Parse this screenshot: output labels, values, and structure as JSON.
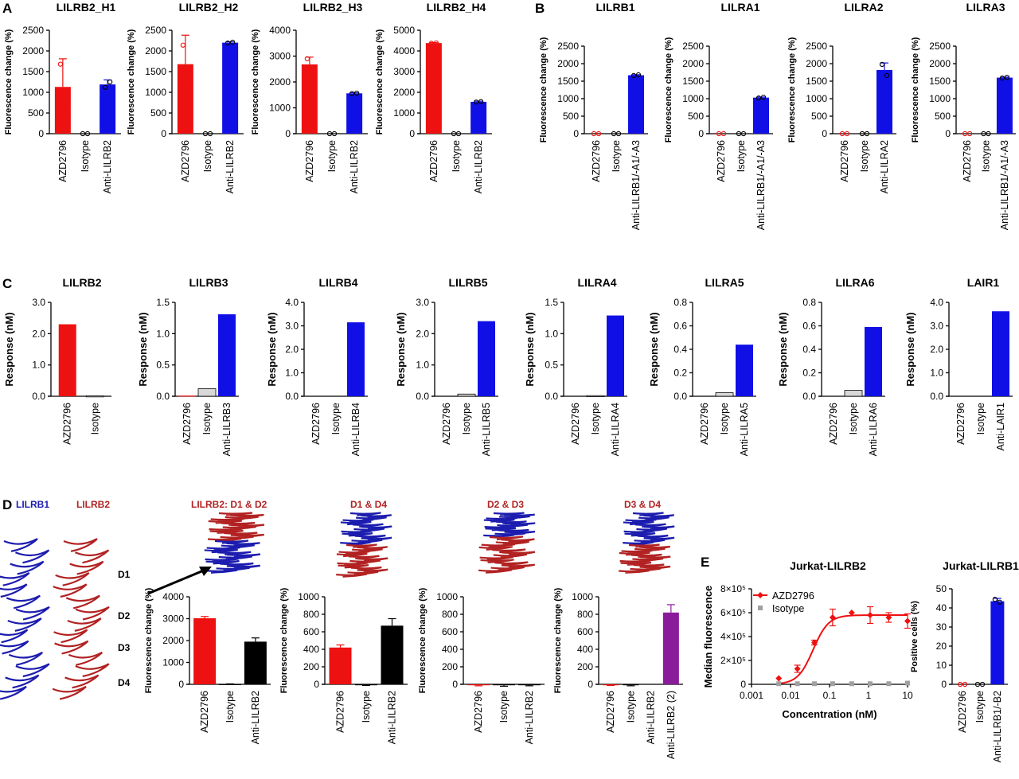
{
  "panel_labels": {
    "a": "A",
    "b": "B",
    "c": "C",
    "d": "D",
    "e": "E"
  },
  "structures": {
    "lilrb1": "LILRB1",
    "lilrb2": "LILRB2",
    "domains": [
      "D1",
      "D2",
      "D3",
      "D4"
    ],
    "chimeras": [
      "LILRB2: D1 & D2",
      "D1 & D4",
      "D2 & D3",
      "D3 & D4"
    ]
  },
  "colors": {
    "red": "#ee1111",
    "blue": "#1010e6",
    "black": "#000000",
    "purple": "#8a1c9b",
    "gray": "#a0a0a0",
    "dark_red": "#b22222",
    "dark_blue": "#1c1caf"
  },
  "chart_data": [
    {
      "type": "bar",
      "panel": "A",
      "title": "LILRB2_H1",
      "ylabel": "Fluorescence change (%)",
      "ylim": [
        0,
        2500
      ],
      "yticks": [
        0,
        500,
        1000,
        1500,
        2000,
        2500
      ],
      "categories": [
        "AZD2796",
        "Isotype",
        "Anti-LILRB2"
      ],
      "values": [
        1130,
        0,
        1190
      ],
      "errors": [
        680,
        0,
        110
      ],
      "colors": [
        "red",
        "blue",
        "blue"
      ],
      "points": [
        [
          1680,
          580
        ],
        [
          0,
          0
        ],
        [
          1120,
          1250
        ]
      ]
    },
    {
      "type": "bar",
      "panel": "A",
      "title": "LILRB2_H2",
      "ylabel": "Fluorescence change (%)",
      "ylim": [
        0,
        2500
      ],
      "yticks": [
        0,
        500,
        1000,
        1500,
        2000,
        2500
      ],
      "categories": [
        "AZD2796",
        "Isotype",
        "Anti-LILRB2"
      ],
      "values": [
        1680,
        0,
        2200
      ],
      "errors": [
        700,
        0,
        20
      ],
      "colors": [
        "red",
        "blue",
        "blue"
      ],
      "points": [
        [
          2140,
          1220
        ],
        [
          0,
          0
        ],
        [
          2190,
          2210
        ]
      ]
    },
    {
      "type": "bar",
      "panel": "A",
      "title": "LILRB2_H3",
      "ylabel": "Fluorescence change (%)",
      "ylim": [
        0,
        4000
      ],
      "yticks": [
        0,
        1000,
        2000,
        3000,
        4000
      ],
      "categories": [
        "AZD2796",
        "Isotype",
        "Anti-LILRB2"
      ],
      "values": [
        2680,
        0,
        1560
      ],
      "errors": [
        280,
        0,
        25
      ],
      "colors": [
        "red",
        "blue",
        "blue"
      ],
      "points": [
        [
          2900,
          2460
        ],
        [
          0,
          0
        ],
        [
          1550,
          1570
        ]
      ]
    },
    {
      "type": "bar",
      "panel": "A",
      "title": "LILRB2_H4",
      "ylabel": "Fluorescence change (%)",
      "ylim": [
        0,
        5000
      ],
      "yticks": [
        0,
        1000,
        2000,
        3000,
        4000,
        5000
      ],
      "categories": [
        "AZD2796",
        "Isotype",
        "Anti-LILRB2"
      ],
      "values": [
        4380,
        0,
        1540
      ],
      "errors": [
        25,
        0,
        30
      ],
      "colors": [
        "red",
        "blue",
        "blue"
      ],
      "points": [
        [
          4370,
          4390
        ],
        [
          0,
          0
        ],
        [
          1530,
          1550
        ]
      ]
    },
    {
      "type": "bar",
      "panel": "B",
      "title": "LILRB1",
      "ylabel": "Fluorescence change (%)",
      "ylim": [
        0,
        2500
      ],
      "yticks": [
        0,
        500,
        1000,
        1500,
        2000,
        2500
      ],
      "categories": [
        "AZD2796",
        "Isotype",
        "Anti-LILRB1/-A1/-A3"
      ],
      "values": [
        0,
        0,
        1670
      ],
      "errors": [
        0,
        0,
        15
      ],
      "colors": [
        "red",
        "black",
        "blue"
      ],
      "points": [
        [
          0,
          0
        ],
        [
          0,
          0
        ],
        [
          1660,
          1680
        ]
      ]
    },
    {
      "type": "bar",
      "panel": "B",
      "title": "LILRA1",
      "ylabel": "Fluorescence change (%)",
      "ylim": [
        0,
        2500
      ],
      "yticks": [
        0,
        500,
        1000,
        1500,
        2000,
        2500
      ],
      "categories": [
        "AZD2796",
        "Isotype",
        "Anti-LILRB1/-A1/-A3"
      ],
      "values": [
        0,
        0,
        1030
      ],
      "errors": [
        0,
        0,
        15
      ],
      "colors": [
        "red",
        "black",
        "blue"
      ],
      "points": [
        [
          0,
          0
        ],
        [
          0,
          0
        ],
        [
          1020,
          1040
        ]
      ]
    },
    {
      "type": "bar",
      "panel": "B",
      "title": "LILRA2",
      "ylabel": "Fluorescence change (%)",
      "ylim": [
        0,
        2500
      ],
      "yticks": [
        0,
        500,
        1000,
        1500,
        2000,
        2500
      ],
      "categories": [
        "AZD2796",
        "Isotype",
        "Anti-LILRA2"
      ],
      "values": [
        0,
        0,
        1820
      ],
      "errors": [
        0,
        0,
        200
      ],
      "colors": [
        "red",
        "black",
        "blue"
      ],
      "points": [
        [
          0,
          0
        ],
        [
          0,
          0
        ],
        [
          1980,
          1660
        ]
      ]
    },
    {
      "type": "bar",
      "panel": "B",
      "title": "LILRA3",
      "ylabel": "Fluorescence change (%)",
      "ylim": [
        0,
        2500
      ],
      "yticks": [
        0,
        500,
        1000,
        1500,
        2000,
        2500
      ],
      "categories": [
        "AZD2796",
        "Isotype",
        "Anti-LILRB1/-A1/-A3"
      ],
      "values": [
        0,
        0,
        1600
      ],
      "errors": [
        0,
        0,
        15
      ],
      "colors": [
        "red",
        "black",
        "blue"
      ],
      "points": [
        [
          0,
          0
        ],
        [
          0,
          0
        ],
        [
          1590,
          1610
        ]
      ]
    },
    {
      "type": "bar",
      "panel": "C",
      "title": "LILRB2",
      "ylabel": "Response (nM)",
      "ylim": [
        0,
        3.0
      ],
      "yticks": [
        "0.0",
        "1.0",
        "2.0",
        "3.0"
      ],
      "categories": [
        "AZD2796",
        "Isotype"
      ],
      "values": [
        2.3,
        0.01
      ],
      "colors": [
        "red",
        "gray"
      ]
    },
    {
      "type": "bar",
      "panel": "C",
      "title": "LILRB3",
      "ylabel": "Response (nM)",
      "ylim": [
        0,
        1.5
      ],
      "yticks": [
        "0.0",
        "0.5",
        "1.0",
        "1.5"
      ],
      "categories": [
        "AZD2796",
        "Isotype",
        "Anti-LILRB3"
      ],
      "values": [
        0.01,
        0.12,
        1.31
      ],
      "colors": [
        "red",
        "gray",
        "blue"
      ]
    },
    {
      "type": "bar",
      "panel": "C",
      "title": "LILRB4",
      "ylabel": "Response (nM)",
      "ylim": [
        0,
        4.0
      ],
      "yticks": [
        "0.0",
        "1.0",
        "2.0",
        "3.0",
        "4.0"
      ],
      "categories": [
        "AZD2796",
        "Isotype",
        "Anti-LILRB4"
      ],
      "values": [
        0.0,
        0.0,
        3.15
      ],
      "colors": [
        "red",
        "gray",
        "blue"
      ]
    },
    {
      "type": "bar",
      "panel": "C",
      "title": "LILRB5",
      "ylabel": "Response (nM)",
      "ylim": [
        0,
        3.0
      ],
      "yticks": [
        "0.0",
        "1.0",
        "2.0",
        "3.0"
      ],
      "categories": [
        "AZD2796",
        "Isotype",
        "Anti-LILRB5"
      ],
      "values": [
        0.0,
        0.07,
        2.4
      ],
      "colors": [
        "red",
        "gray",
        "blue"
      ]
    },
    {
      "type": "bar",
      "panel": "C",
      "title": "LILRA4",
      "ylabel": "Response (nM)",
      "ylim": [
        0,
        1.5
      ],
      "yticks": [
        "0.0",
        "0.5",
        "1.0",
        "1.5"
      ],
      "categories": [
        "AZD2796",
        "Isotype",
        "Anti-LILRA4"
      ],
      "values": [
        0.0,
        0.01,
        1.29
      ],
      "colors": [
        "red",
        "gray",
        "blue"
      ]
    },
    {
      "type": "bar",
      "panel": "C",
      "title": "LILRA5",
      "ylabel": "Response (nM)",
      "ylim": [
        0,
        0.8
      ],
      "yticks": [
        "0.0",
        "0.2",
        "0.4",
        "0.6",
        "0.8"
      ],
      "categories": [
        "AZD2796",
        "Isotype",
        "Anti-LILRA5"
      ],
      "values": [
        0.0,
        0.03,
        0.44
      ],
      "colors": [
        "red",
        "gray",
        "blue"
      ]
    },
    {
      "type": "bar",
      "panel": "C",
      "title": "LILRA6",
      "ylabel": "Response (nM)",
      "ylim": [
        0,
        0.8
      ],
      "yticks": [
        "0.0",
        "0.2",
        "0.4",
        "0.6",
        "0.8"
      ],
      "categories": [
        "AZD2796",
        "Isotype",
        "Anti-LILRA6"
      ],
      "values": [
        0.0,
        0.05,
        0.59
      ],
      "colors": [
        "red",
        "gray",
        "blue"
      ]
    },
    {
      "type": "bar",
      "panel": "C",
      "title": "LAIR1",
      "ylabel": "Response (nM)",
      "ylim": [
        0,
        4.0
      ],
      "yticks": [
        "0.0",
        "1.0",
        "2.0",
        "3.0",
        "4.0"
      ],
      "categories": [
        "AZD2796",
        "Isotype",
        "Anti-LAIR1"
      ],
      "values": [
        0.0,
        0.0,
        3.62
      ],
      "colors": [
        "red",
        "gray",
        "blue"
      ]
    },
    {
      "type": "bar",
      "panel": "D",
      "title": "",
      "ylabel": "Fluorescence change (%)",
      "ylim": [
        0,
        4000
      ],
      "yticks": [
        0,
        1000,
        2000,
        3000,
        4000
      ],
      "categories": [
        "AZD2796",
        "Isotype",
        "Anti-LILRB2"
      ],
      "values": [
        3020,
        10,
        1950
      ],
      "errors": [
        80,
        10,
        170
      ],
      "colors": [
        "red",
        "black",
        "black"
      ]
    },
    {
      "type": "bar",
      "panel": "D",
      "title": "",
      "ylabel": "Fluorescence change (%)",
      "ylim": [
        0,
        1000
      ],
      "yticks": [
        0,
        200,
        400,
        600,
        800,
        1000
      ],
      "categories": [
        "AZD2796",
        "Isotype",
        "Anti-LILRB2"
      ],
      "values": [
        420,
        -5,
        670
      ],
      "errors": [
        30,
        8,
        80
      ],
      "colors": [
        "red",
        "black",
        "black"
      ]
    },
    {
      "type": "bar",
      "panel": "D",
      "title": "",
      "ylabel": "Fluorescence change (%)",
      "ylim": [
        0,
        1000
      ],
      "yticks": [
        0,
        200,
        400,
        600,
        800,
        1000
      ],
      "categories": [
        "AZD2796",
        "Isotype",
        "Anti-LILRB2"
      ],
      "values": [
        -5,
        -10,
        -5
      ],
      "errors": [
        12,
        12,
        12
      ],
      "colors": [
        "red",
        "black",
        "black"
      ]
    },
    {
      "type": "bar",
      "panel": "D",
      "title": "",
      "ylabel": "Fluorescence change (%)",
      "ylim": [
        0,
        1000
      ],
      "yticks": [
        0,
        200,
        400,
        600,
        800,
        1000
      ],
      "categories": [
        "AZD2796",
        "Isotype",
        "Anti-LILRB2",
        "Anti-LILRB2 (2)"
      ],
      "values": [
        -5,
        -5,
        0,
        820
      ],
      "errors": [
        8,
        12,
        0,
        90
      ],
      "colors": [
        "red",
        "black",
        "black",
        "purple"
      ]
    },
    {
      "type": "line",
      "panel": "E",
      "title": "Jurkat-LILRB2",
      "xlabel": "Concentration (nM)",
      "ylabel": "Median fluorescence",
      "xscale": "log",
      "xlim": [
        0.001,
        10
      ],
      "xticks": [
        "0.001",
        "0.01",
        "0.1",
        "1",
        "10"
      ],
      "ylim": [
        0,
        800000
      ],
      "yticks": [
        "0",
        "2×10⁵",
        "4×10⁵",
        "6×10⁵",
        "8×10⁵"
      ],
      "legend": [
        "AZD2796",
        "Isotype"
      ],
      "series": [
        {
          "name": "AZD2796",
          "x": [
            0.005,
            0.015,
            0.041,
            0.12,
            0.37,
            1.1,
            3.3,
            10
          ],
          "y": [
            50000,
            130000,
            350000,
            560000,
            600000,
            580000,
            560000,
            530000
          ],
          "errors": [
            0,
            30000,
            20000,
            70000,
            0,
            70000,
            40000,
            60000
          ]
        },
        {
          "name": "Isotype",
          "x": [
            0.005,
            0.015,
            0.041,
            0.12,
            0.37,
            1.1,
            3.3,
            10
          ],
          "y": [
            5000,
            5000,
            5000,
            5000,
            5000,
            5000,
            5000,
            10000
          ]
        }
      ]
    },
    {
      "type": "bar",
      "panel": "E",
      "title": "Jurkat-LILRB1",
      "ylabel": "Positive cells (%)",
      "ylim": [
        0,
        50
      ],
      "yticks": [
        0,
        10,
        20,
        30,
        40,
        50
      ],
      "categories": [
        "AZD2796",
        "Isotype",
        "Anti-LILRB1/-B2"
      ],
      "values": [
        0,
        0,
        43.5
      ],
      "errors": [
        0,
        0,
        1.5
      ],
      "colors": [
        "red",
        "black",
        "blue"
      ],
      "points": [
        [
          0,
          0
        ],
        [
          0,
          0
        ],
        [
          44.5,
          43
        ]
      ]
    }
  ]
}
